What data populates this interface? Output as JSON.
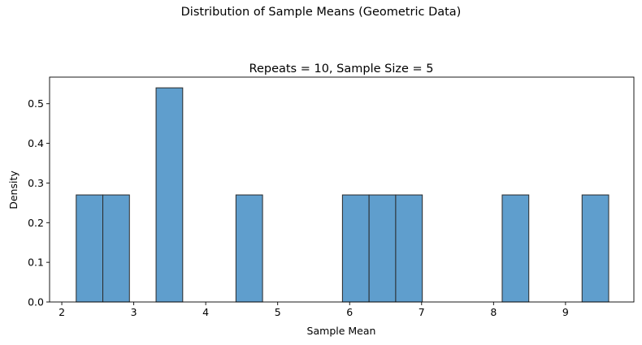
{
  "suptitle": "Distribution of Sample Means (Geometric Data)",
  "chart_data": {
    "type": "bar",
    "title": "Repeats = 10, Sample Size = 5",
    "xlabel": "Sample Mean",
    "ylabel": "Density",
    "xlim": [
      1.83,
      9.95
    ],
    "ylim": [
      0,
      0.567
    ],
    "xticks": [
      2,
      3,
      4,
      5,
      6,
      7,
      8,
      9
    ],
    "yticks": [
      0.0,
      0.1,
      0.2,
      0.3,
      0.4,
      0.5
    ],
    "grid": false,
    "bar_color": "#5f9ecd",
    "edge_color": "#2a2a2a",
    "bins": [
      {
        "x0": 2.2,
        "x1": 2.57,
        "density": 0.27
      },
      {
        "x0": 2.57,
        "x1": 2.94,
        "density": 0.27
      },
      {
        "x0": 3.31,
        "x1": 3.68,
        "density": 0.54
      },
      {
        "x0": 4.42,
        "x1": 4.79,
        "density": 0.27
      },
      {
        "x0": 5.9,
        "x1": 6.27,
        "density": 0.27
      },
      {
        "x0": 6.27,
        "x1": 6.64,
        "density": 0.27
      },
      {
        "x0": 6.64,
        "x1": 7.01,
        "density": 0.27
      },
      {
        "x0": 8.12,
        "x1": 8.49,
        "density": 0.27
      },
      {
        "x0": 9.23,
        "x1": 9.6,
        "density": 0.27
      }
    ]
  }
}
